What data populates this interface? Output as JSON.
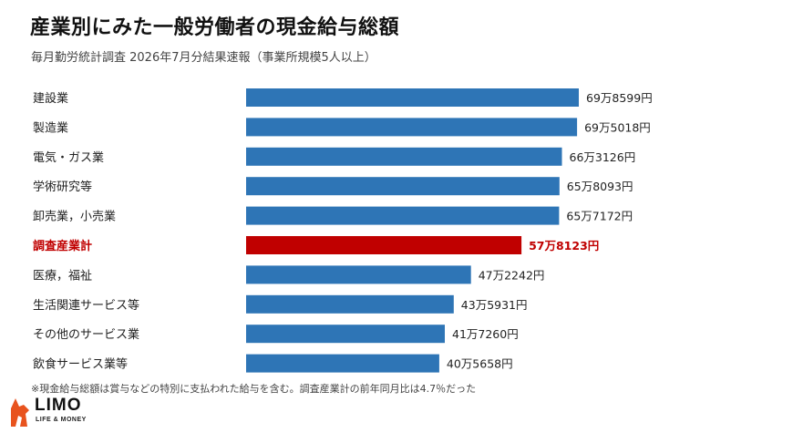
{
  "title": "産業別にみた一般労働者の現金給与総額",
  "subtitle": "毎月勤労統計調査 2026年7月分結果速報（事業所規模5人以上）",
  "footnote": "※現金給与総額は賞与などの特別に支払われた給与を含む。調査産業計の前年同月比は4.7％だった",
  "logo": {
    "main": "LIMO",
    "sub": "LIFE & MONEY"
  },
  "colors": {
    "bar": "#2e75b6",
    "highlight": "#c00000",
    "text": "#222222"
  },
  "chart_data": {
    "type": "bar",
    "orientation": "horizontal",
    "categories": [
      "建設業",
      "製造業",
      "電気・ガス業",
      "学術研究等",
      "卸売業，小売業",
      "調査産業計",
      "医療，福祉",
      "生活関連サービス等",
      "その他のサービス業",
      "飲食サービス業等"
    ],
    "values": [
      698599,
      695018,
      663126,
      658093,
      657172,
      578123,
      472242,
      435931,
      417260,
      405658
    ],
    "data_labels": [
      "69万8599円",
      "69万5018円",
      "66万3126円",
      "65万8093円",
      "65万7172円",
      "57万8123円",
      "47万2242円",
      "43万5931円",
      "41万7260円",
      "40万5658円"
    ],
    "highlight_index": 5,
    "xlim": [
      0,
      698599
    ],
    "grid": false,
    "legend": "none"
  }
}
